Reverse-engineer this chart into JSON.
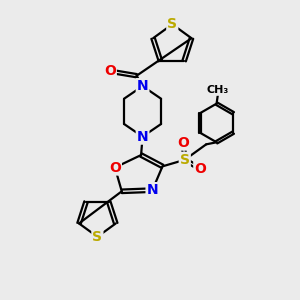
{
  "bg_color": "#ebebeb",
  "bond_color": "#000000",
  "N_color": "#0000ee",
  "O_color": "#ee0000",
  "S_color": "#bbaa00",
  "line_width": 1.6,
  "font_size_atom": 10,
  "figsize": [
    3.0,
    3.0
  ],
  "dpi": 100,
  "xlim": [
    0,
    10
  ],
  "ylim": [
    0,
    10
  ]
}
